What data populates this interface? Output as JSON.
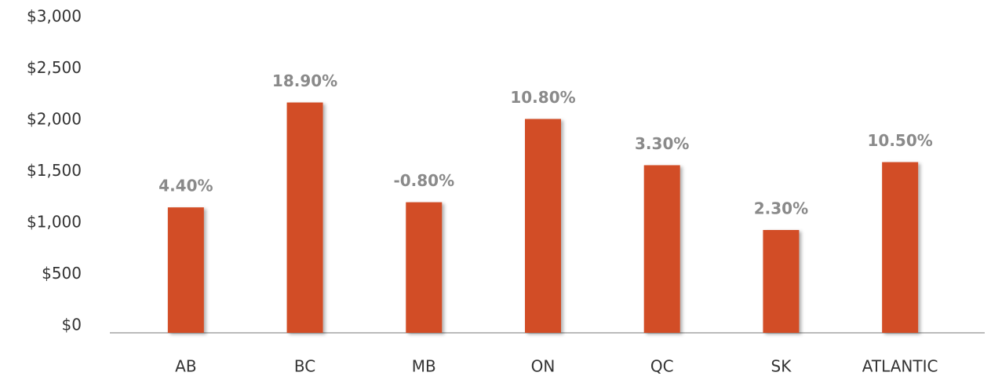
{
  "chart_data": {
    "type": "bar",
    "categories": [
      "AB",
      "BC",
      "MB",
      "ON",
      "QC",
      "SK",
      "ATLANTIC"
    ],
    "values": [
      1220,
      2240,
      1270,
      2080,
      1630,
      1000,
      1660
    ],
    "annotations": [
      "4.40%",
      "18.90%",
      "-0.80%",
      "10.80%",
      "3.30%",
      "2.30%",
      "10.50%"
    ],
    "color": "#d24e27",
    "ylim": [
      0,
      3000
    ],
    "yticks": [
      {
        "value": 0,
        "label": "$0"
      },
      {
        "value": 500,
        "label": "$500"
      },
      {
        "value": 1000,
        "label": "$1,000"
      },
      {
        "value": 1500,
        "label": "$1,500"
      },
      {
        "value": 2000,
        "label": "$2,000"
      },
      {
        "value": 2500,
        "label": "$2,500"
      },
      {
        "value": 3000,
        "label": "$3,000"
      }
    ],
    "grid": false
  }
}
